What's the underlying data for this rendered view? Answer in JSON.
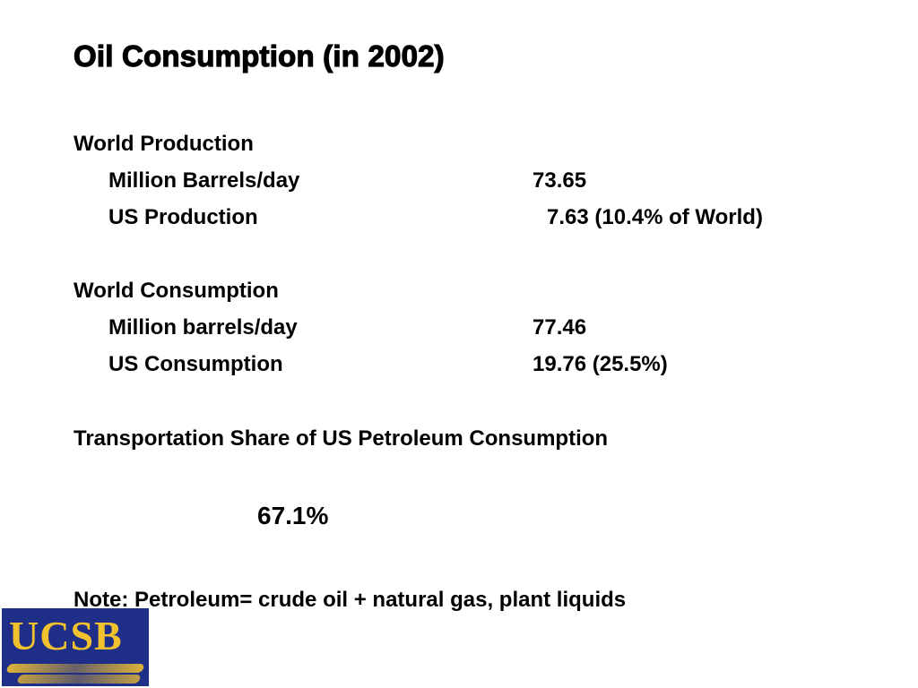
{
  "title": "Oil Consumption (in 2002)",
  "world_production": {
    "heading": "World Production",
    "row1": {
      "label": "Million Barrels/day",
      "value": "73.65"
    },
    "row2": {
      "label": "US Production",
      "value": "7.63 (10.4% of World)"
    }
  },
  "world_consumption": {
    "heading": "World Consumption",
    "row1": {
      "label": "Million barrels/day",
      "value": "77.46"
    },
    "row2": {
      "label": "US Consumption",
      "value": "19.76 (25.5%)"
    }
  },
  "transportation": {
    "heading": "Transportation Share of US Petroleum Consumption",
    "value": "67.1%"
  },
  "note": "Note: Petroleum= crude oil + natural gas, plant liquids",
  "logo": {
    "text": "UCSB",
    "background_color": "#1f2f88",
    "text_color": "#f2c12e"
  }
}
